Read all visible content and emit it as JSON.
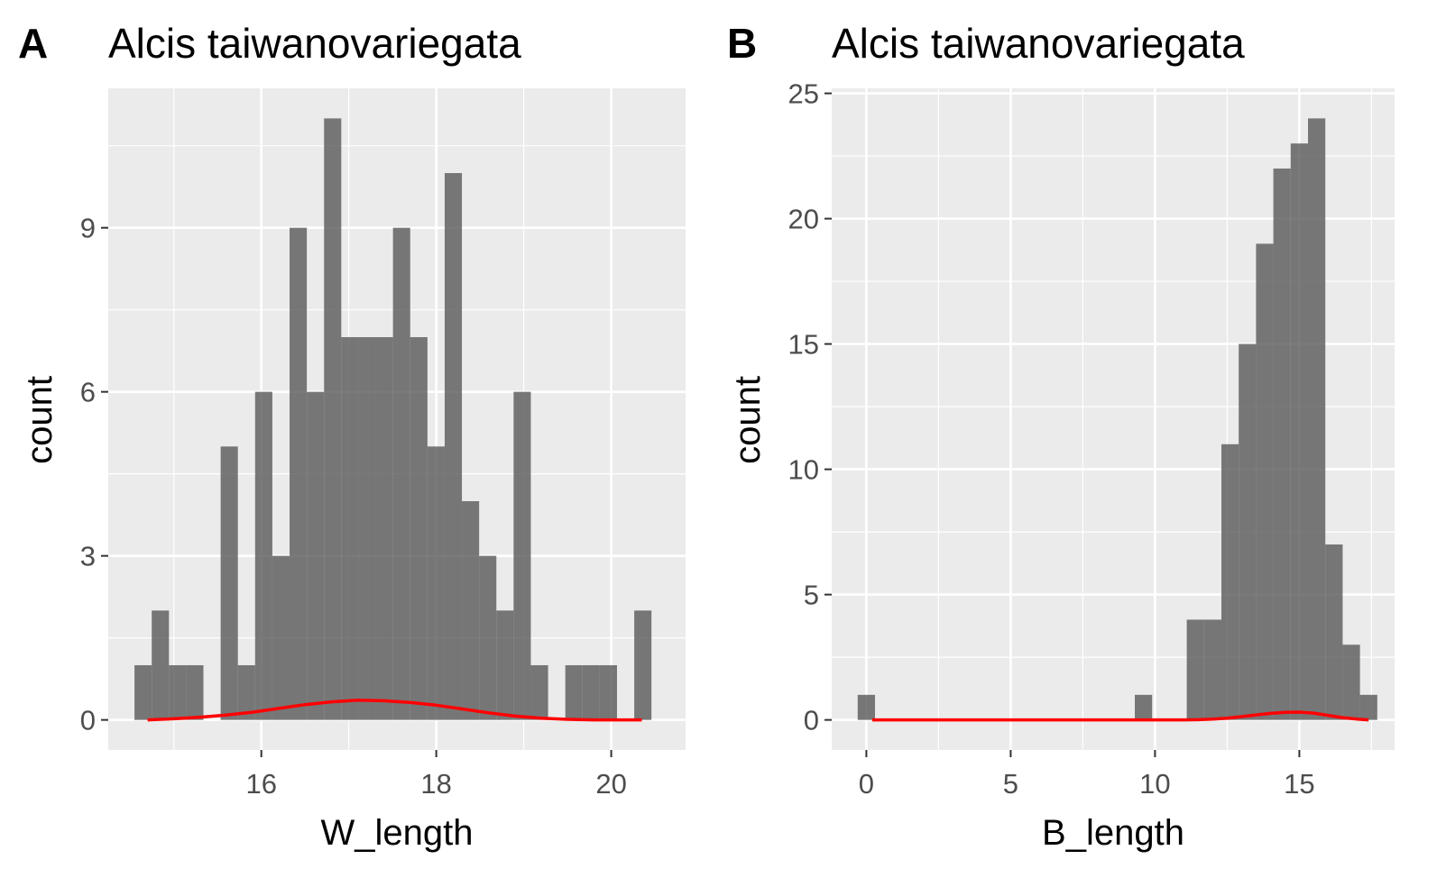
{
  "colors": {
    "panel_background": "#ebebeb",
    "grid": "#ffffff",
    "bar_fill": "#595959",
    "density_line": "#ff0000"
  },
  "chart_data": [
    {
      "type": "bar",
      "tag": "A",
      "title": "Alcis taiwanovariegata",
      "xlabel": "W_length",
      "ylabel": "count",
      "xlim": [
        14.25,
        20.85
      ],
      "ylim": [
        -0.55,
        11.55
      ],
      "xticks": [
        16,
        18,
        20
      ],
      "yticks": [
        0,
        3,
        6,
        9
      ],
      "x_tick_labels": [
        "16",
        "18",
        "20"
      ],
      "y_tick_labels": [
        "0",
        "3",
        "6",
        "9"
      ],
      "bin_width": 0.197,
      "bins_start": [
        14.55,
        14.747,
        14.944,
        15.141,
        15.338,
        15.535,
        15.732,
        15.929,
        16.126,
        16.323,
        16.52,
        16.717,
        16.914,
        17.111,
        17.308,
        17.505,
        17.702,
        17.899,
        18.096,
        18.293,
        18.49,
        18.687,
        18.884,
        19.081,
        19.278,
        19.475,
        19.672,
        19.869,
        20.066,
        20.263
      ],
      "counts": [
        1,
        2,
        1,
        1,
        0,
        5,
        1,
        6,
        3,
        9,
        6,
        11,
        7,
        7,
        7,
        9,
        7,
        5,
        10,
        4,
        3,
        2,
        6,
        1,
        0,
        1,
        1,
        1,
        0,
        2
      ],
      "density_curve": {
        "x": [
          14.7,
          15.0,
          15.3,
          15.6,
          15.9,
          16.2,
          16.5,
          16.8,
          17.1,
          17.4,
          17.7,
          18.0,
          18.3,
          18.6,
          18.9,
          19.2,
          19.5,
          19.8,
          20.1,
          20.35
        ],
        "y": [
          0.0,
          0.02,
          0.05,
          0.09,
          0.14,
          0.21,
          0.28,
          0.33,
          0.36,
          0.35,
          0.32,
          0.27,
          0.2,
          0.13,
          0.07,
          0.03,
          0.01,
          0.0,
          0.0,
          0.0
        ]
      }
    },
    {
      "type": "bar",
      "tag": "B",
      "title": "Alcis taiwanovariegata",
      "xlabel": "B_length",
      "ylabel": "count",
      "xlim": [
        -1.2,
        18.3
      ],
      "ylim": [
        -1.2,
        25.2
      ],
      "xticks": [
        0,
        5,
        10,
        15
      ],
      "yticks": [
        0,
        5,
        10,
        15,
        20,
        25
      ],
      "x_tick_labels": [
        "0",
        "5",
        "10",
        "15"
      ],
      "y_tick_labels": [
        "0",
        "5",
        "10",
        "15",
        "20",
        "25"
      ],
      "bin_width": 0.6,
      "bins_start": [
        -0.3,
        0.3,
        0.9,
        1.5,
        2.1,
        2.7,
        3.3,
        3.9,
        4.5,
        5.1,
        5.7,
        6.3,
        6.9,
        7.5,
        8.1,
        8.7,
        9.3,
        9.9,
        10.5,
        11.1,
        11.7,
        12.3,
        12.9,
        13.5,
        14.1,
        14.7,
        15.3,
        15.9,
        16.5,
        17.1
      ],
      "counts": [
        1,
        0,
        0,
        0,
        0,
        0,
        0,
        0,
        0,
        0,
        0,
        0,
        0,
        0,
        0,
        0,
        1,
        0,
        0,
        4,
        4,
        11,
        15,
        19,
        22,
        23,
        24,
        7,
        3,
        1
      ],
      "density_curve": {
        "x": [
          0.2,
          11.0,
          11.5,
          12.0,
          12.5,
          13.0,
          13.5,
          14.0,
          14.5,
          15.0,
          15.5,
          16.0,
          16.5,
          17.0,
          17.4
        ],
        "y": [
          0.0,
          0.0,
          0.01,
          0.03,
          0.07,
          0.13,
          0.2,
          0.26,
          0.3,
          0.31,
          0.27,
          0.18,
          0.09,
          0.03,
          0.0
        ]
      }
    }
  ]
}
